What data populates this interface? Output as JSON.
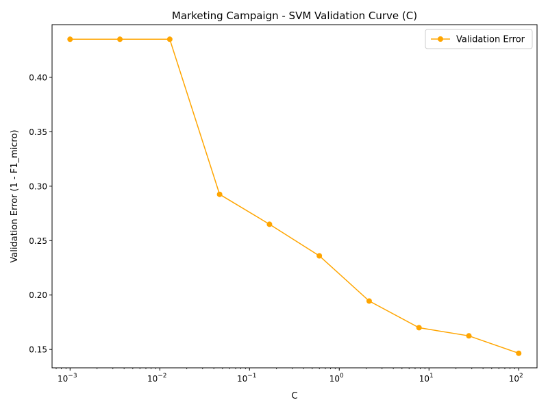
{
  "chart_data": {
    "type": "line",
    "title": "Marketing Campaign - SVM Validation Curve (C)",
    "xlabel": "C",
    "ylabel": "Validation Error (1 - F1_micro)",
    "xscale": "log",
    "xlim": [
      0.00063,
      160
    ],
    "ylim": [
      0.1331,
      0.4484
    ],
    "grid": false,
    "legend_position": "top-right",
    "x_ticks": [
      {
        "value": 0.001,
        "base": "10",
        "exp": "−3"
      },
      {
        "value": 0.01,
        "base": "10",
        "exp": "−2"
      },
      {
        "value": 0.1,
        "base": "10",
        "exp": "−1"
      },
      {
        "value": 1,
        "base": "10",
        "exp": "0"
      },
      {
        "value": 10,
        "base": "10",
        "exp": "1"
      },
      {
        "value": 100,
        "base": "10",
        "exp": "2"
      }
    ],
    "y_ticks": [
      {
        "value": 0.15,
        "label": "0.15"
      },
      {
        "value": 0.2,
        "label": "0.20"
      },
      {
        "value": 0.25,
        "label": "0.25"
      },
      {
        "value": 0.3,
        "label": "0.30"
      },
      {
        "value": 0.35,
        "label": "0.35"
      },
      {
        "value": 0.4,
        "label": "0.40"
      }
    ],
    "series": [
      {
        "name": "Validation Error",
        "color": "#ffa500",
        "marker": "circle",
        "x": [
          0.001,
          0.003594,
          0.012915,
          0.046416,
          0.16681,
          0.59948,
          2.1544,
          7.7426,
          27.826,
          100
        ],
        "values": [
          0.435,
          0.435,
          0.435,
          0.2925,
          0.265,
          0.236,
          0.1945,
          0.17,
          0.1625,
          0.1465
        ]
      }
    ]
  }
}
